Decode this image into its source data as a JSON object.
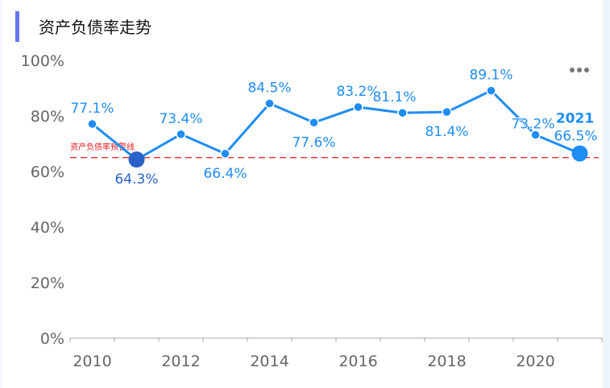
{
  "title": "资产负债率走势",
  "menu_icon": "more-dots-icon",
  "colors": {
    "line": "#1e8df5",
    "highlight": "#2a62c9",
    "warning": "#e8161b",
    "accent": "#6675f5"
  },
  "chart_data": {
    "type": "line",
    "title": "资产负债率走势",
    "x": [
      2010,
      2011,
      2012,
      2013,
      2014,
      2015,
      2016,
      2017,
      2018,
      2019,
      2020,
      2021
    ],
    "values": [
      77.1,
      64.3,
      73.4,
      66.4,
      84.5,
      77.6,
      83.2,
      81.1,
      81.4,
      89.1,
      73.2,
      66.5
    ],
    "labels": [
      "77.1%",
      "64.3%",
      "73.4%",
      "66.4%",
      "84.5%",
      "77.6%",
      "83.2%",
      "81.1%",
      "81.4%",
      "89.1%",
      "73.2%",
      "66.5%"
    ],
    "label_pos": [
      "above",
      "below",
      "above",
      "below",
      "above",
      "below",
      "above",
      "above",
      "below",
      "above",
      "above",
      "above"
    ],
    "highlight": {
      "min_year": 2011,
      "last_year": 2021,
      "last_label": "2021"
    },
    "x_ticks": [
      "2010",
      "2012",
      "2014",
      "2016",
      "2018",
      "2020"
    ],
    "y_ticks": [
      "0%",
      "20%",
      "40%",
      "60%",
      "80%",
      "100%"
    ],
    "ylim": [
      0,
      100
    ],
    "xlabel": "",
    "ylabel": "",
    "reference_line": {
      "value": 65,
      "label": "资产负债率预警线"
    },
    "grid": false
  }
}
